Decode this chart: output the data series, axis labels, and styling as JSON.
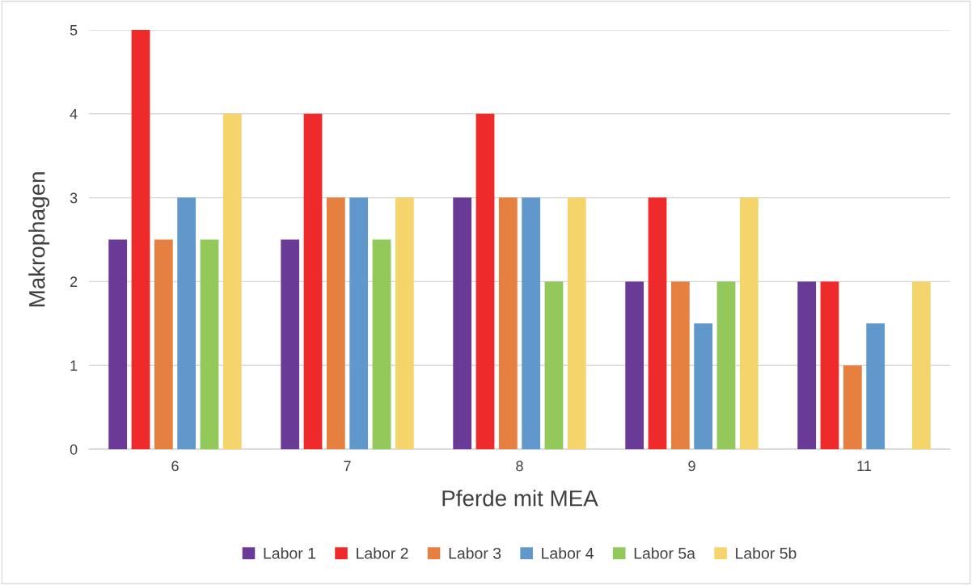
{
  "chart_data": {
    "type": "bar",
    "xlabel": "Pferde mit MEA",
    "ylabel": "Makrophagen",
    "categories": [
      "6",
      "7",
      "8",
      "9",
      "11"
    ],
    "series": [
      {
        "name": "Labor 1",
        "color": "#6a3a97",
        "values": [
          2.5,
          2.5,
          3,
          2,
          2
        ]
      },
      {
        "name": "Labor 2",
        "color": "#ee2a2a",
        "values": [
          5,
          4,
          4,
          3,
          2
        ]
      },
      {
        "name": "Labor 3",
        "color": "#e68040",
        "values": [
          2.5,
          3,
          3,
          2,
          1
        ]
      },
      {
        "name": "Labor 4",
        "color": "#6098cc",
        "values": [
          3,
          3,
          3,
          1.5,
          1.5
        ]
      },
      {
        "name": "Labor 5a",
        "color": "#92c95a",
        "values": [
          2.5,
          2.5,
          2,
          2,
          null
        ]
      },
      {
        "name": "Labor 5b",
        "color": "#f5d46c",
        "values": [
          4,
          3,
          3,
          3,
          2
        ]
      }
    ],
    "ylim": [
      0,
      5
    ],
    "yticks": [
      0,
      1,
      2,
      3,
      4,
      5
    ],
    "grid": "y",
    "legend": "bottom"
  }
}
